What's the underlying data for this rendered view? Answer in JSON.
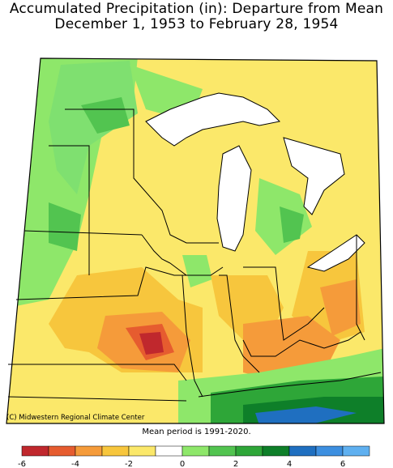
{
  "title_line1": "Accumulated Precipitation (in): Departure from Mean",
  "title_line2": "December 1, 1953 to February 28, 1954",
  "credit": "(C) Midwestern Regional Climate Center",
  "mean_note": "Mean period is 1991-2020.",
  "legend": {
    "colors": [
      "#c0282d",
      "#e65c2f",
      "#f59b3a",
      "#f7c63d",
      "#fbe86a",
      "#ffffff",
      "#8ee76a",
      "#52c450",
      "#2ea638",
      "#0e7f29",
      "#1f6fc0",
      "#3d8fe0",
      "#5fb0f0"
    ],
    "ticks": [
      "-6",
      "-4",
      "-2",
      "0",
      "2",
      "4",
      "6"
    ]
  },
  "colors": {
    "lake": "#ffffff",
    "border": "#000000",
    "surplus_light": "#7fe070",
    "surplus_dark": "#2ea638",
    "deficit_red": "#c0282d"
  }
}
